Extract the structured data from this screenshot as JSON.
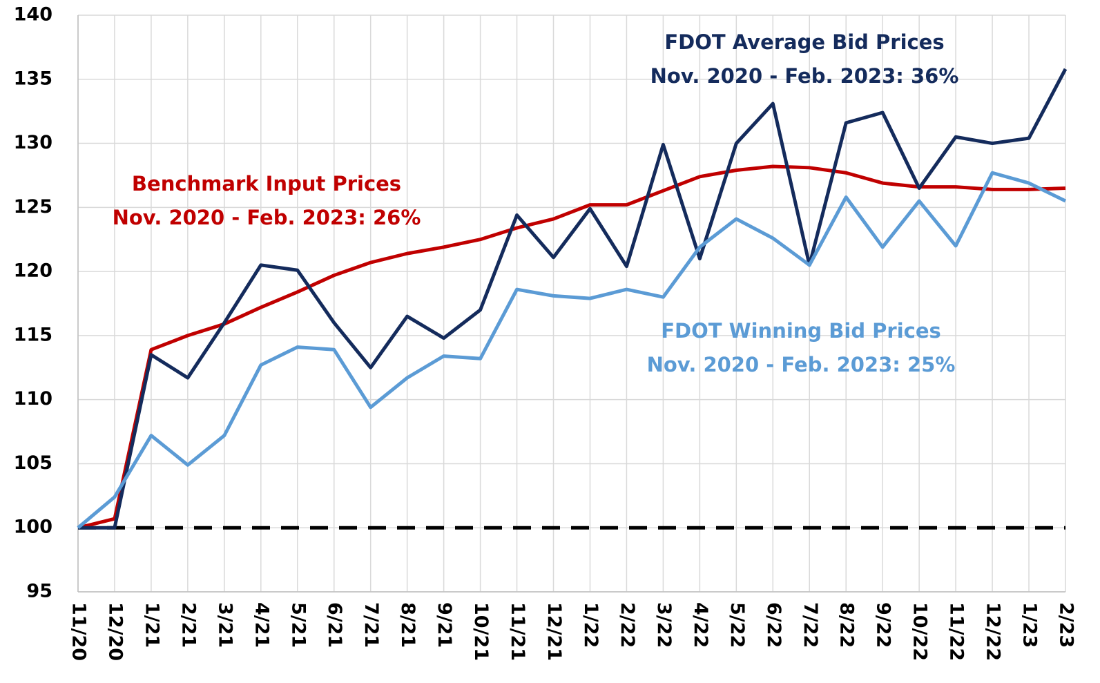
{
  "chart_data": {
    "type": "line",
    "categories": [
      "11/20",
      "12/20",
      "1/21",
      "2/21",
      "3/21",
      "4/21",
      "5/21",
      "6/21",
      "7/21",
      "8/21",
      "9/21",
      "10/21",
      "11/21",
      "12/21",
      "1/22",
      "2/22",
      "3/22",
      "4/22",
      "5/22",
      "6/22",
      "7/22",
      "8/22",
      "9/22",
      "10/22",
      "11/22",
      "12/22",
      "1/23",
      "2/23"
    ],
    "series": [
      {
        "name": "Benchmark Input Prices",
        "color": "#c00000",
        "values": [
          100,
          100.7,
          113.9,
          115,
          115.9,
          117.2,
          118.4,
          119.7,
          120.7,
          121.4,
          121.9,
          122.5,
          123.4,
          124.1,
          125.2,
          125.2,
          126.3,
          127.4,
          127.9,
          128.2,
          128.1,
          127.7,
          126.9,
          126.6,
          126.6,
          126.4,
          126.4,
          126.5
        ]
      },
      {
        "name": "FDOT Average Bid Prices",
        "color": "#142b5c",
        "values": [
          100,
          100,
          113.5,
          111.7,
          116,
          120.5,
          120.1,
          116,
          112.5,
          116.5,
          114.8,
          117,
          124.4,
          121.1,
          124.9,
          120.4,
          129.9,
          121,
          130,
          133.1,
          120.5,
          131.6,
          132.4,
          126.5,
          130.5,
          130,
          130.4,
          135.8
        ]
      },
      {
        "name": "FDOT Winning Bid Prices",
        "color": "#5b9bd5",
        "values": [
          100,
          102.4,
          107.2,
          104.9,
          107.2,
          112.7,
          114.1,
          113.9,
          109.4,
          111.7,
          113.4,
          113.2,
          118.6,
          118.1,
          117.9,
          118.6,
          118,
          121.9,
          124.1,
          122.6,
          120.5,
          125.8,
          121.9,
          125.5,
          122,
          127.7,
          126.9,
          125.5
        ]
      }
    ],
    "annotations": [
      {
        "lines": [
          "Benchmark Input Prices",
          "Nov. 2020 - Feb. 2023: 26%"
        ],
        "color": "#c00000"
      },
      {
        "lines": [
          "FDOT Average Bid Prices",
          "Nov. 2020 - Feb. 2023: 36%"
        ],
        "color": "#142b5c"
      },
      {
        "lines": [
          "FDOT Winning Bid Prices",
          "Nov. 2020 - Feb. 2023: 25%"
        ],
        "color": "#5b9bd5"
      }
    ],
    "reference_line": 100,
    "ylim": [
      95,
      140
    ],
    "yticks": [
      95,
      100,
      105,
      110,
      115,
      120,
      125,
      130,
      135,
      140
    ],
    "grid": true
  }
}
